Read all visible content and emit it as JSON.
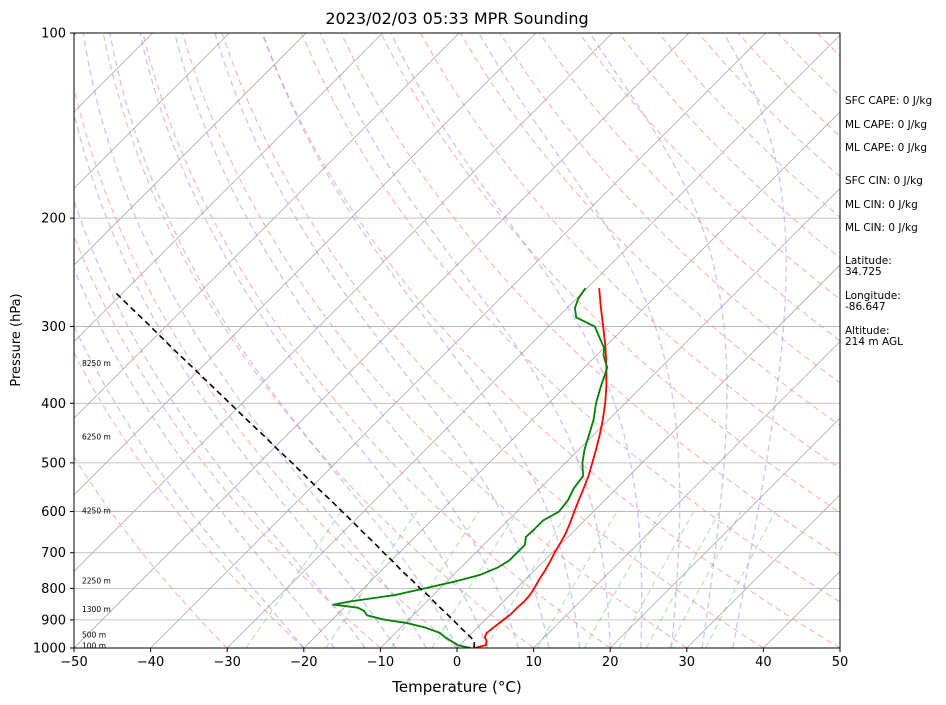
{
  "chart_data": {
    "type": "line",
    "title": "2023/02/03 05:33 MPR Sounding",
    "xlabel": "Temperature (°C)",
    "ylabel": "Pressure (hPa)",
    "xlim": [
      -50,
      50
    ],
    "ylim": [
      1000,
      100
    ],
    "y_scale": "log",
    "x_ticks": [
      "−50",
      "−40",
      "−30",
      "−20",
      "−10",
      "0",
      "10",
      "20",
      "30",
      "40",
      "50"
    ],
    "y_ticks": [
      "100",
      "200",
      "300",
      "400",
      "500",
      "600",
      "700",
      "800",
      "900",
      "1000"
    ],
    "grid": true,
    "colors": {
      "temperature": "#ff0000",
      "dewpoint": "#008000",
      "parcel": "#000000",
      "isotherm": "#a0a0a0",
      "dry_adiabat": "#ff9999",
      "moist_adiabat": "#8888ff",
      "mixing_ratio": "#66bb66"
    },
    "series": [
      {
        "name": "temperature",
        "points": [
          [
            1000,
            2.2
          ],
          [
            990,
            3.4
          ],
          [
            975,
            3.0
          ],
          [
            960,
            2.2
          ],
          [
            945,
            1.9
          ],
          [
            925,
            2.1
          ],
          [
            900,
            2.4
          ],
          [
            880,
            2.6
          ],
          [
            860,
            2.6
          ],
          [
            840,
            2.7
          ],
          [
            820,
            2.6
          ],
          [
            800,
            2.3
          ],
          [
            775,
            1.8
          ],
          [
            750,
            1.4
          ],
          [
            725,
            0.9
          ],
          [
            700,
            0.3
          ],
          [
            675,
            -0.2
          ],
          [
            650,
            -0.8
          ],
          [
            625,
            -1.6
          ],
          [
            600,
            -2.5
          ],
          [
            575,
            -3.4
          ],
          [
            550,
            -4.3
          ],
          [
            525,
            -5.3
          ],
          [
            500,
            -6.5
          ],
          [
            475,
            -7.8
          ],
          [
            450,
            -9.2
          ],
          [
            425,
            -10.8
          ],
          [
            400,
            -12.6
          ],
          [
            375,
            -14.7
          ],
          [
            350,
            -17.1
          ],
          [
            325,
            -19.8
          ],
          [
            300,
            -22.9
          ],
          [
            280,
            -25.6
          ],
          [
            260,
            -28.4
          ]
        ]
      },
      {
        "name": "dewpoint",
        "points": [
          [
            1000,
            1.8
          ],
          [
            990,
            -0.2
          ],
          [
            975,
            -1.6
          ],
          [
            960,
            -3.0
          ],
          [
            945,
            -4.2
          ],
          [
            925,
            -7.0
          ],
          [
            910,
            -10.0
          ],
          [
            900,
            -13.0
          ],
          [
            885,
            -16.0
          ],
          [
            870,
            -17.0
          ],
          [
            860,
            -18.2
          ],
          [
            850,
            -21.8
          ],
          [
            840,
            -20.0
          ],
          [
            820,
            -15.0
          ],
          [
            800,
            -12.0
          ],
          [
            780,
            -9.0
          ],
          [
            760,
            -6.5
          ],
          [
            740,
            -5.2
          ],
          [
            720,
            -4.6
          ],
          [
            700,
            -4.6
          ],
          [
            680,
            -4.6
          ],
          [
            660,
            -5.5
          ],
          [
            640,
            -5.4
          ],
          [
            620,
            -5.4
          ],
          [
            600,
            -4.5
          ],
          [
            575,
            -4.8
          ],
          [
            550,
            -5.6
          ],
          [
            525,
            -6.0
          ],
          [
            500,
            -7.8
          ],
          [
            475,
            -9.3
          ],
          [
            450,
            -10.6
          ],
          [
            425,
            -12.0
          ],
          [
            400,
            -13.8
          ],
          [
            375,
            -15.4
          ],
          [
            350,
            -17.0
          ],
          [
            335,
            -19.0
          ],
          [
            325,
            -20.0
          ],
          [
            300,
            -24.0
          ],
          [
            290,
            -27.6
          ],
          [
            280,
            -29.0
          ],
          [
            270,
            -29.8
          ],
          [
            260,
            -30.2
          ]
        ]
      },
      {
        "name": "parcel",
        "points": [
          [
            1000,
            2.2
          ],
          [
            975,
            1.4
          ],
          [
            950,
            -0.4
          ],
          [
            925,
            -2.3
          ],
          [
            900,
            -4.2
          ],
          [
            875,
            -6.2
          ],
          [
            850,
            -8.3
          ],
          [
            825,
            -10.3
          ],
          [
            800,
            -12.6
          ],
          [
            775,
            -14.8
          ],
          [
            750,
            -17.2
          ],
          [
            725,
            -19.5
          ],
          [
            700,
            -22.0
          ],
          [
            675,
            -24.5
          ],
          [
            650,
            -27.2
          ],
          [
            625,
            -29.9
          ],
          [
            600,
            -32.8
          ],
          [
            575,
            -35.8
          ],
          [
            550,
            -39.0
          ],
          [
            525,
            -42.3
          ],
          [
            500,
            -45.7
          ],
          [
            475,
            -49.4
          ],
          [
            450,
            -53.2
          ],
          [
            425,
            -57.3
          ],
          [
            400,
            -61.6
          ],
          [
            375,
            -66.2
          ],
          [
            350,
            -71.1
          ],
          [
            325,
            -76.4
          ],
          [
            300,
            -82.0
          ],
          [
            280,
            -86.9
          ],
          [
            265,
            -90.8
          ]
        ]
      }
    ],
    "height_labels": [
      {
        "p": 995,
        "text": "100 m"
      },
      {
        "p": 955,
        "text": "500 m"
      },
      {
        "p": 867,
        "text": "1300 m"
      },
      {
        "p": 780,
        "text": "2250 m"
      },
      {
        "p": 600,
        "text": "4250 m"
      },
      {
        "p": 455,
        "text": "6250 m"
      },
      {
        "p": 345,
        "text": "8250 m"
      }
    ],
    "stats": {
      "sfc_cape": "SFC CAPE: 0 J/kg",
      "ml_cape_1": "ML CAPE: 0 J/kg",
      "ml_cape_2": "ML CAPE: 0 J/kg",
      "sfc_cin": "SFC CIN: 0 J/kg",
      "ml_cin_1": "ML CIN: 0 J/kg",
      "ml_cin_2": "ML CIN: 0 J/kg",
      "latitude_label": "Latitude:",
      "latitude": "34.725",
      "longitude_label": "Longitude:",
      "longitude": "-86.647",
      "altitude_label": "Altitude:",
      "altitude": "214 m AGL"
    }
  }
}
